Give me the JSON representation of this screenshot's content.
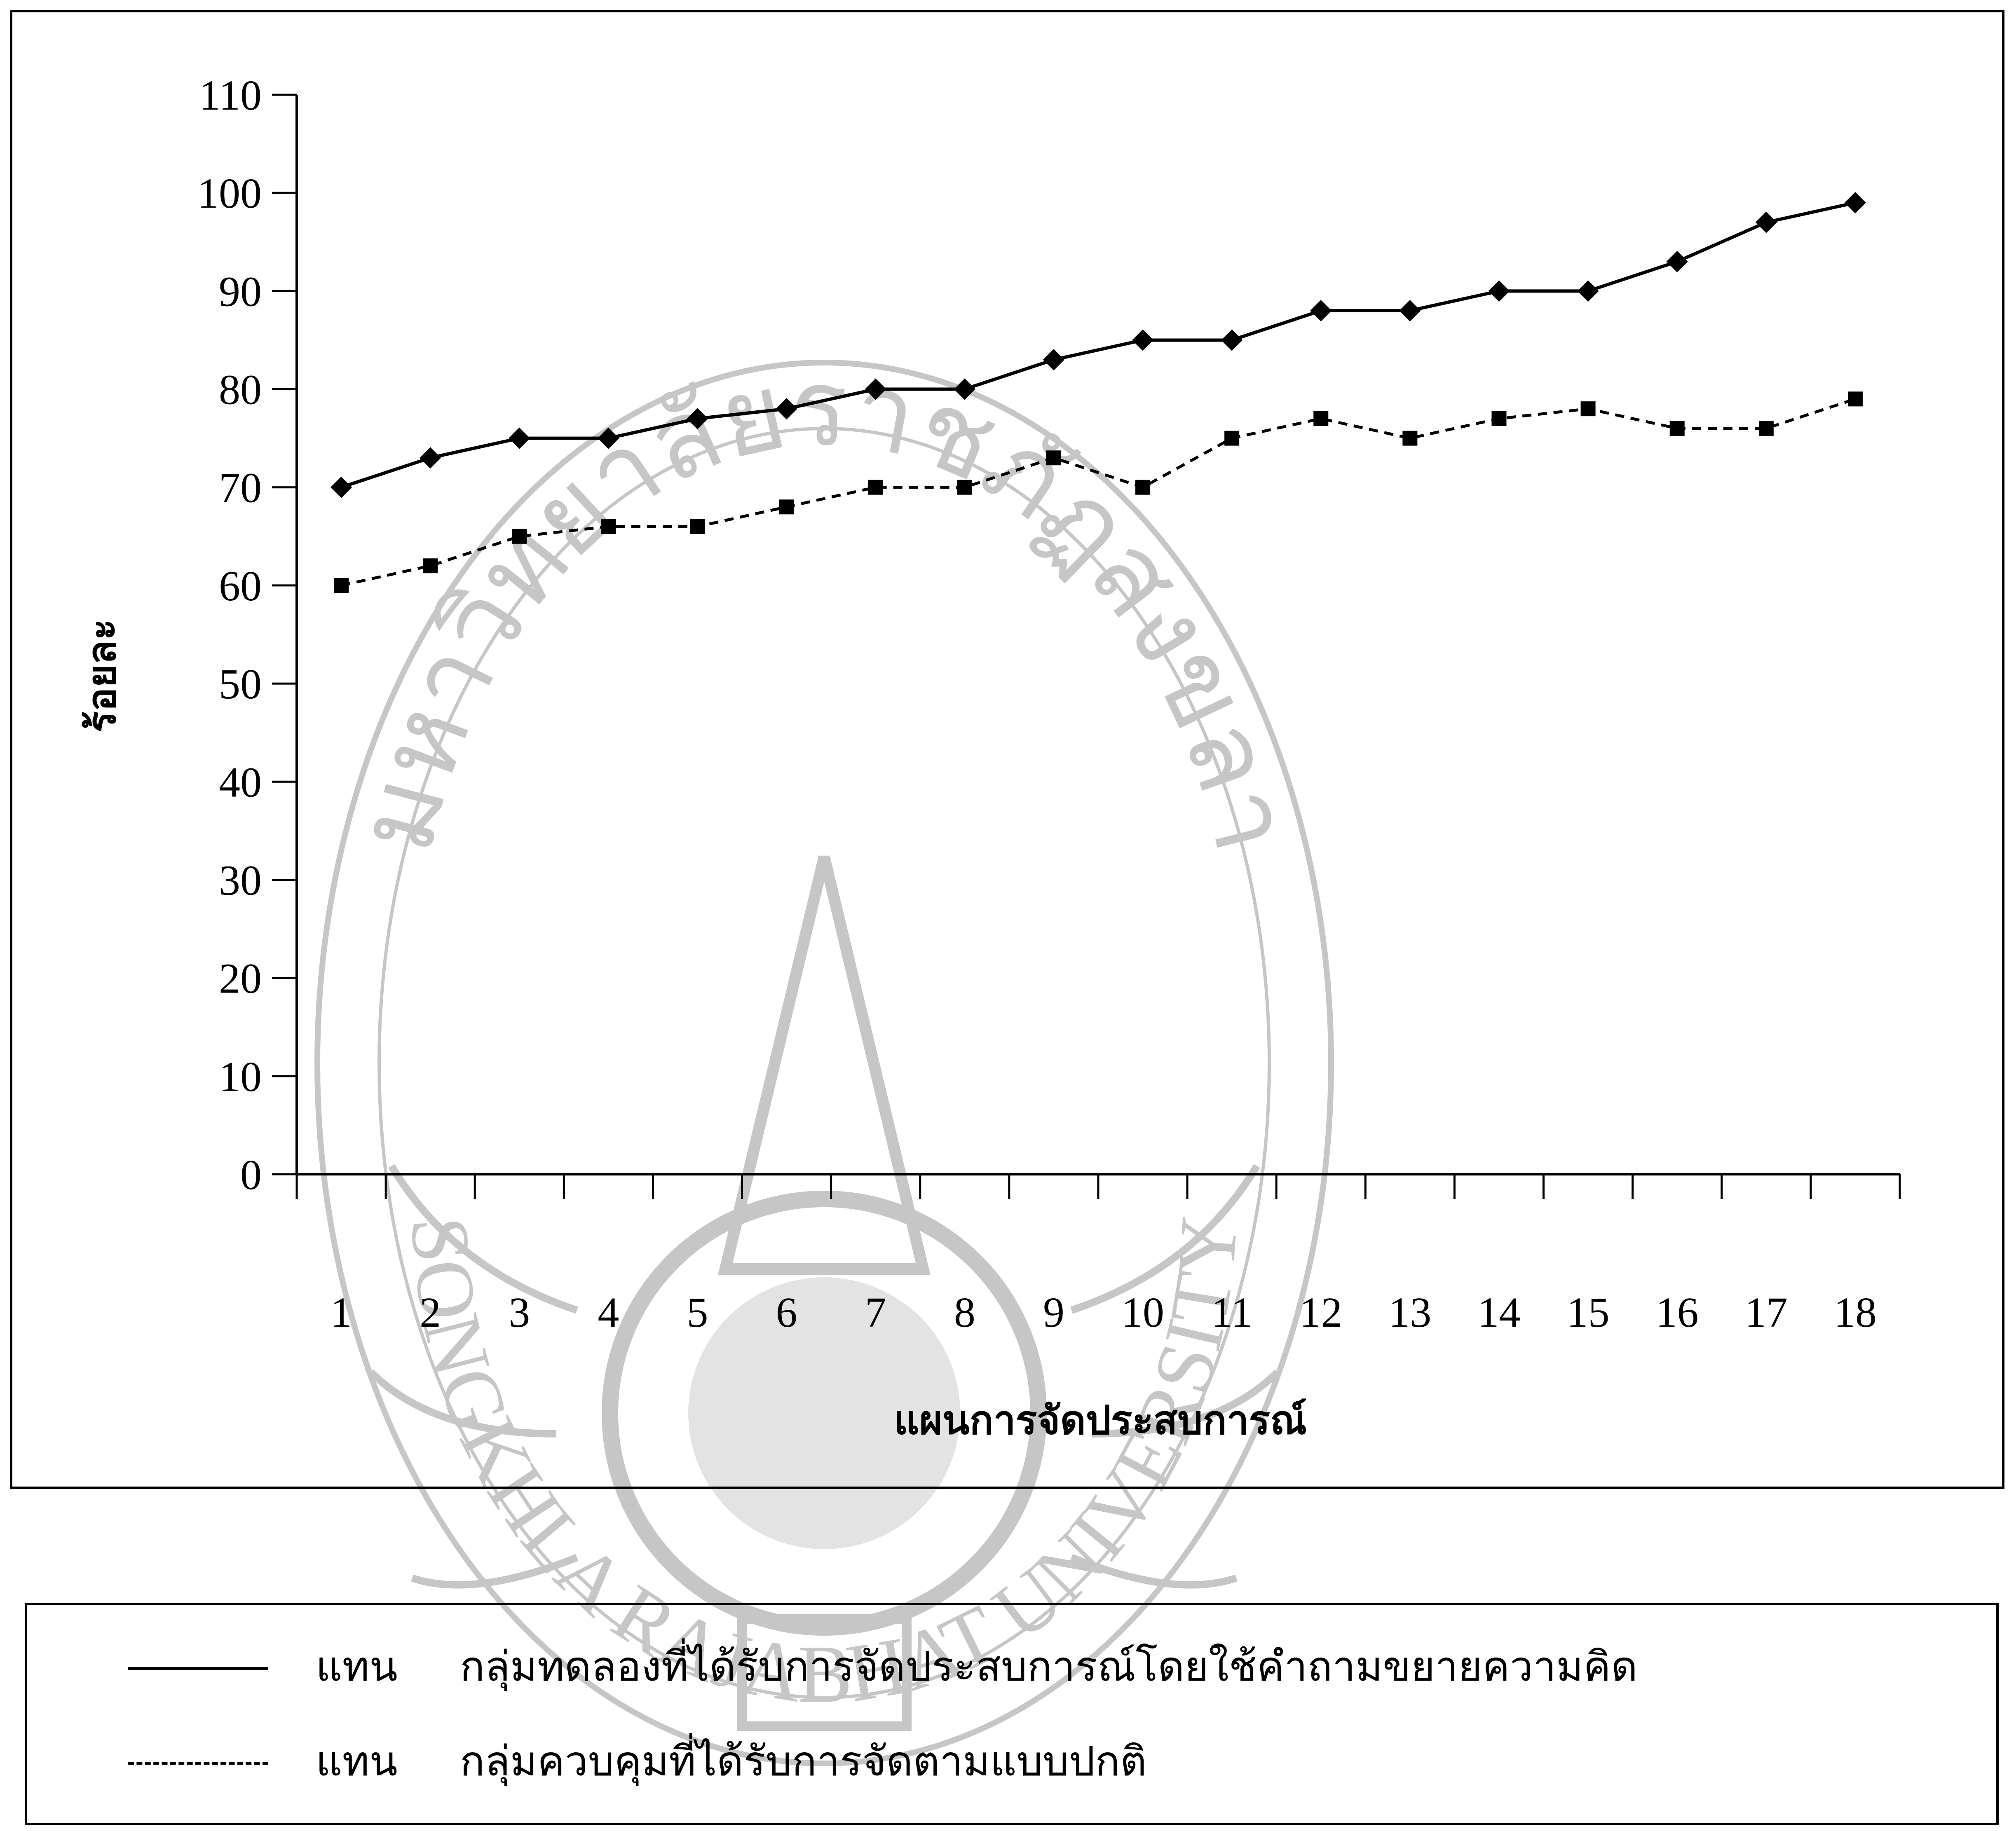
{
  "chart_data": {
    "type": "line",
    "title": "",
    "xlabel": "แผนการจัดประสบการณ์",
    "ylabel": "ร้อยละ",
    "categories": [
      "1",
      "2",
      "3",
      "4",
      "5",
      "6",
      "7",
      "8",
      "9",
      "10",
      "11",
      "12",
      "13",
      "14",
      "15",
      "16",
      "17",
      "18"
    ],
    "ylim": [
      0,
      110
    ],
    "yticks": [
      0,
      10,
      20,
      30,
      40,
      50,
      60,
      70,
      80,
      90,
      100,
      110
    ],
    "grid": false,
    "legend_position": "bottom",
    "series": [
      {
        "values": [
          70,
          73,
          75,
          75,
          77,
          78,
          80,
          80,
          83,
          85,
          85,
          88,
          88,
          90,
          90,
          93,
          97,
          99
        ],
        "line_style": "solid",
        "marker": "diamond",
        "color": "#000000"
      },
      {
        "values": [
          60,
          62,
          65,
          66,
          66,
          68,
          70,
          70,
          73,
          70,
          75,
          77,
          75,
          77,
          78,
          76,
          76,
          79
        ],
        "line_style": "dashed",
        "marker": "square",
        "color": "#000000"
      }
    ]
  },
  "legend": {
    "items": [
      {
        "word": "แทน",
        "label": "กลุ่มทดลองที่ได้รับการจัดประสบการณ์โดยใช้คำถามขยายความคิด",
        "line_style": "solid"
      },
      {
        "word": "แทน",
        "label": "กลุ่มควบคุมที่ได้รับการจัดตามแบบปกติ",
        "line_style": "dashed"
      }
    ]
  },
  "watermark": {
    "top_text": "มหาวิทยาลัยราชภัฏสงขลา",
    "bottom_text": "SONGKHLA RAJABHAT UNIVERSITY",
    "icon": "university-seal-icon"
  }
}
